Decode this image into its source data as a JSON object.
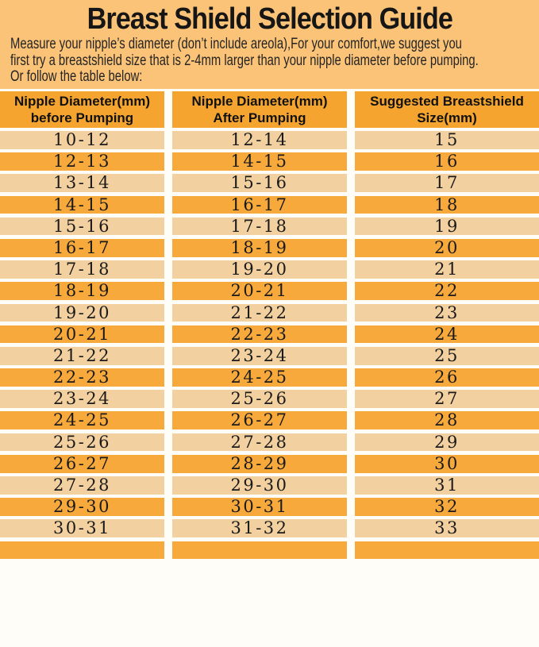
{
  "title": "Breast Shield Selection Guide",
  "intro": {
    "line1": "Measure your nipple’s diameter   (don’t include areola),For your comfort,we suggest you",
    "line2": "first try a breastshield size that is 2-4mm larger than your nipple diameter before pumping.",
    "line3": "Or follow the table below:"
  },
  "table": {
    "headers": [
      {
        "line1": "Nipple Diameter(mm)",
        "line2": "before Pumping"
      },
      {
        "line1": "Nipple Diameter(mm)",
        "line2": "After Pumping"
      },
      {
        "line1": "Suggested Breastshield",
        "line2": "Size(mm)"
      }
    ],
    "rows": [
      [
        "10-12",
        "12-14",
        "15"
      ],
      [
        "12-13",
        "14-15",
        "16"
      ],
      [
        "13-14",
        "15-16",
        "17"
      ],
      [
        "14-15",
        "16-17",
        "18"
      ],
      [
        "15-16",
        "17-18",
        "19"
      ],
      [
        "16-17",
        "18-19",
        "20"
      ],
      [
        "17-18",
        "19-20",
        "21"
      ],
      [
        "18-19",
        "20-21",
        "22"
      ],
      [
        "19-20",
        "21-22",
        "23"
      ],
      [
        "20-21",
        "22-23",
        "24"
      ],
      [
        "21-22",
        "23-24",
        "25"
      ],
      [
        "22-23",
        "24-25",
        "26"
      ],
      [
        "23-24",
        "25-26",
        "27"
      ],
      [
        "24-25",
        "26-27",
        "28"
      ],
      [
        "25-26",
        "27-28",
        "29"
      ],
      [
        "26-27",
        "28-29",
        "30"
      ],
      [
        "27-28",
        "29-30",
        "31"
      ],
      [
        "29-30",
        "30-31",
        "32"
      ],
      [
        "30-31",
        "31-32",
        "33"
      ]
    ]
  },
  "colors": {
    "page_bg": "#FBC377",
    "header_bg": "#F5A52F",
    "row_dark": "#F7A93C",
    "row_light": "#F2D0A0",
    "gap_color": "#FFFDF8",
    "text_color": "#1B1B1B"
  }
}
